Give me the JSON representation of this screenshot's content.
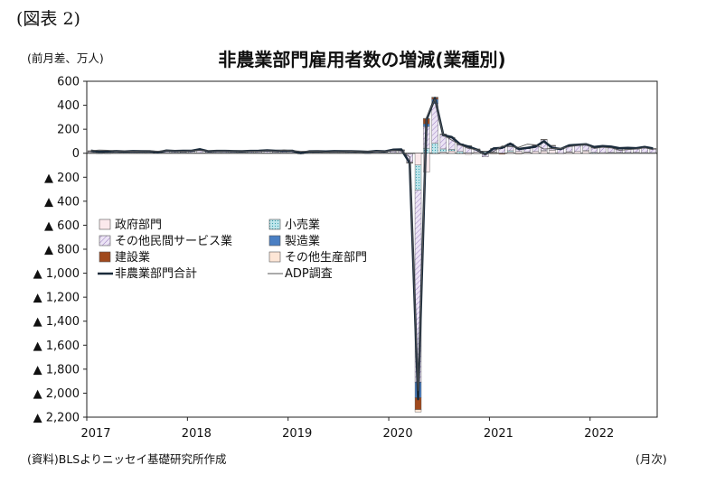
{
  "figure_label": "(図表 2)",
  "chart_data": {
    "type": "bar",
    "title": "非農業部門雇用者数の増減(業種別)",
    "y_unit": "(前月差、万人)",
    "x_unit": "(月次)",
    "source": "(資料)BLSよりニッセイ基礎研究所作成",
    "ylim": [
      -2200,
      600
    ],
    "y_ticks": [
      600,
      400,
      200,
      0,
      -200,
      -400,
      -600,
      -800,
      -1000,
      -1200,
      -1400,
      -1600,
      -1800,
      -2000,
      -2200
    ],
    "y_tick_labels": [
      "600",
      "400",
      "200",
      "0",
      "▲ 200",
      "▲ 400",
      "▲ 600",
      "▲ 800",
      "▲ 1,000",
      "▲ 1,200",
      "▲ 1,400",
      "▲ 1,600",
      "▲ 1,800",
      "▲ 2,000",
      "▲ 2,200"
    ],
    "x_tick_labels": [
      "2017",
      "2018",
      "2019",
      "2020",
      "2021",
      "2022"
    ],
    "x_start": "2017-01",
    "grid": false,
    "legend_position": "lower-left",
    "stack_order": [
      "政府部門",
      "小売業",
      "その他民間サービス業",
      "製造業",
      "建設業",
      "その他生産部門"
    ],
    "series": [
      {
        "name": "政府部門",
        "kind": "bar",
        "color": "#fbe9ec",
        "values": [
          3,
          3,
          3,
          3,
          3,
          3,
          3,
          3,
          3,
          3,
          3,
          3,
          3,
          3,
          3,
          3,
          3,
          3,
          3,
          3,
          3,
          3,
          3,
          3,
          3,
          3,
          3,
          3,
          3,
          3,
          3,
          3,
          3,
          3,
          3,
          3,
          4,
          3,
          3,
          -98,
          -157,
          -5,
          10,
          20,
          -5,
          -10,
          10,
          2,
          5,
          2,
          10,
          15,
          10,
          15,
          20,
          25,
          -5,
          10,
          15,
          20,
          2,
          5,
          4,
          6,
          5,
          6,
          5,
          4
        ]
      },
      {
        "name": "小売業",
        "kind": "bar",
        "color": "#a8dce4",
        "values": [
          3,
          -2,
          -1,
          2,
          1,
          1,
          2,
          1,
          2,
          1,
          1,
          3,
          1,
          1,
          1,
          1,
          1,
          1,
          1,
          1,
          1,
          1,
          2,
          1,
          1,
          1,
          1,
          1,
          1,
          1,
          1,
          1,
          1,
          1,
          1,
          1,
          1,
          1,
          -5,
          -210,
          42,
          84,
          26,
          12,
          15,
          3,
          -3,
          12,
          4,
          -2,
          11,
          -2,
          1,
          0,
          2,
          -1,
          0,
          3,
          0,
          2,
          5,
          0,
          3,
          1,
          1,
          1,
          1,
          1
        ]
      },
      {
        "name": "その他民間サービス業",
        "kind": "bar",
        "color": "#ddd2ee",
        "values": [
          10,
          5,
          8,
          8,
          7,
          9,
          8,
          9,
          0,
          14,
          10,
          8,
          12,
          20,
          8,
          10,
          11,
          9,
          8,
          10,
          11,
          15,
          11,
          9,
          12,
          -2,
          9,
          10,
          7,
          10,
          9,
          9,
          8,
          9,
          10,
          8,
          15,
          19,
          -70,
          -1600,
          180,
          330,
          118,
          95,
          55,
          55,
          20,
          -30,
          30,
          44,
          42,
          20,
          28,
          49,
          90,
          35,
          35,
          45,
          50,
          45,
          38,
          48,
          40,
          28,
          30,
          28,
          38,
          28
        ]
      },
      {
        "name": "製造業",
        "kind": "bar",
        "color": "#4a7fc3",
        "values": [
          1,
          2,
          2,
          1,
          1,
          1,
          1,
          1,
          1,
          1,
          1,
          2,
          1,
          2,
          2,
          2,
          1,
          2,
          1,
          2,
          2,
          1,
          1,
          1,
          1,
          0,
          0,
          0,
          1,
          0,
          1,
          0,
          0,
          -4,
          1,
          0,
          1,
          1,
          -2,
          -130,
          22,
          36,
          4,
          3,
          6,
          3,
          4,
          2,
          -1,
          2,
          5,
          3,
          3,
          3,
          3,
          3,
          3,
          3,
          3,
          3,
          2,
          3,
          4,
          4,
          4,
          4,
          4,
          4
        ]
      },
      {
        "name": "建設業",
        "kind": "bar",
        "color": "#a0491d",
        "values": [
          3,
          4,
          1,
          1,
          1,
          1,
          1,
          1,
          1,
          2,
          2,
          3,
          2,
          6,
          3,
          2,
          2,
          1,
          2,
          2,
          2,
          3,
          2,
          3,
          1,
          -1,
          1,
          1,
          1,
          1,
          1,
          1,
          1,
          1,
          1,
          1,
          5,
          4,
          -3,
          -99,
          46,
          16,
          1,
          1,
          1,
          1,
          1,
          2,
          -1,
          -6,
          11,
          -2,
          1,
          2,
          1,
          2,
          1,
          1,
          1,
          1,
          4,
          2,
          2,
          2,
          2,
          2,
          2,
          2
        ]
      },
      {
        "name": "その他生産部門",
        "kind": "bar",
        "color": "#fde6d6",
        "values": [
          1,
          1,
          1,
          1,
          1,
          1,
          1,
          1,
          1,
          1,
          1,
          1,
          1,
          1,
          1,
          1,
          1,
          1,
          1,
          1,
          1,
          1,
          1,
          1,
          1,
          1,
          1,
          1,
          1,
          1,
          1,
          1,
          1,
          1,
          1,
          1,
          1,
          1,
          -1,
          -20,
          1,
          2,
          2,
          2,
          2,
          1,
          1,
          1,
          1,
          1,
          1,
          1,
          1,
          1,
          1,
          1,
          1,
          1,
          1,
          1,
          1,
          1,
          1,
          1,
          1,
          1,
          1,
          1
        ]
      },
      {
        "name": "非農業部門合計",
        "kind": "line",
        "color": "#1b2b3b",
        "values": [
          21,
          12,
          15,
          17,
          14,
          17,
          16,
          16,
          8,
          22,
          18,
          20,
          20,
          33,
          16,
          19,
          19,
          17,
          16,
          19,
          20,
          24,
          20,
          20,
          20,
          2,
          15,
          16,
          14,
          17,
          16,
          16,
          14,
          12,
          18,
          15,
          29,
          31,
          -81,
          -2050,
          280,
          460,
          150,
          135,
          75,
          55,
          30,
          -10,
          40,
          45,
          80,
          35,
          45,
          55,
          100,
          45,
          35,
          65,
          70,
          75,
          52,
          60,
          55,
          42,
          45,
          42,
          52,
          40
        ]
      },
      {
        "name": "ADP調査",
        "kind": "line",
        "color": "#555555",
        "values": [
          22,
          26,
          25,
          18,
          19,
          16,
          18,
          20,
          17,
          22,
          20,
          17,
          22,
          23,
          21,
          19,
          20,
          19,
          19,
          18,
          17,
          22,
          18,
          27,
          21,
          17,
          15,
          18,
          10,
          14,
          12,
          17,
          13,
          14,
          16,
          17,
          23,
          18,
          -30,
          -1980,
          300,
          450,
          150,
          110,
          70,
          40,
          30,
          -12,
          15,
          60,
          55,
          50,
          75,
          70,
          35,
          40,
          40,
          55,
          65,
          75,
          40,
          50,
          45,
          25,
          30,
          35,
          45,
          30
        ]
      }
    ]
  }
}
